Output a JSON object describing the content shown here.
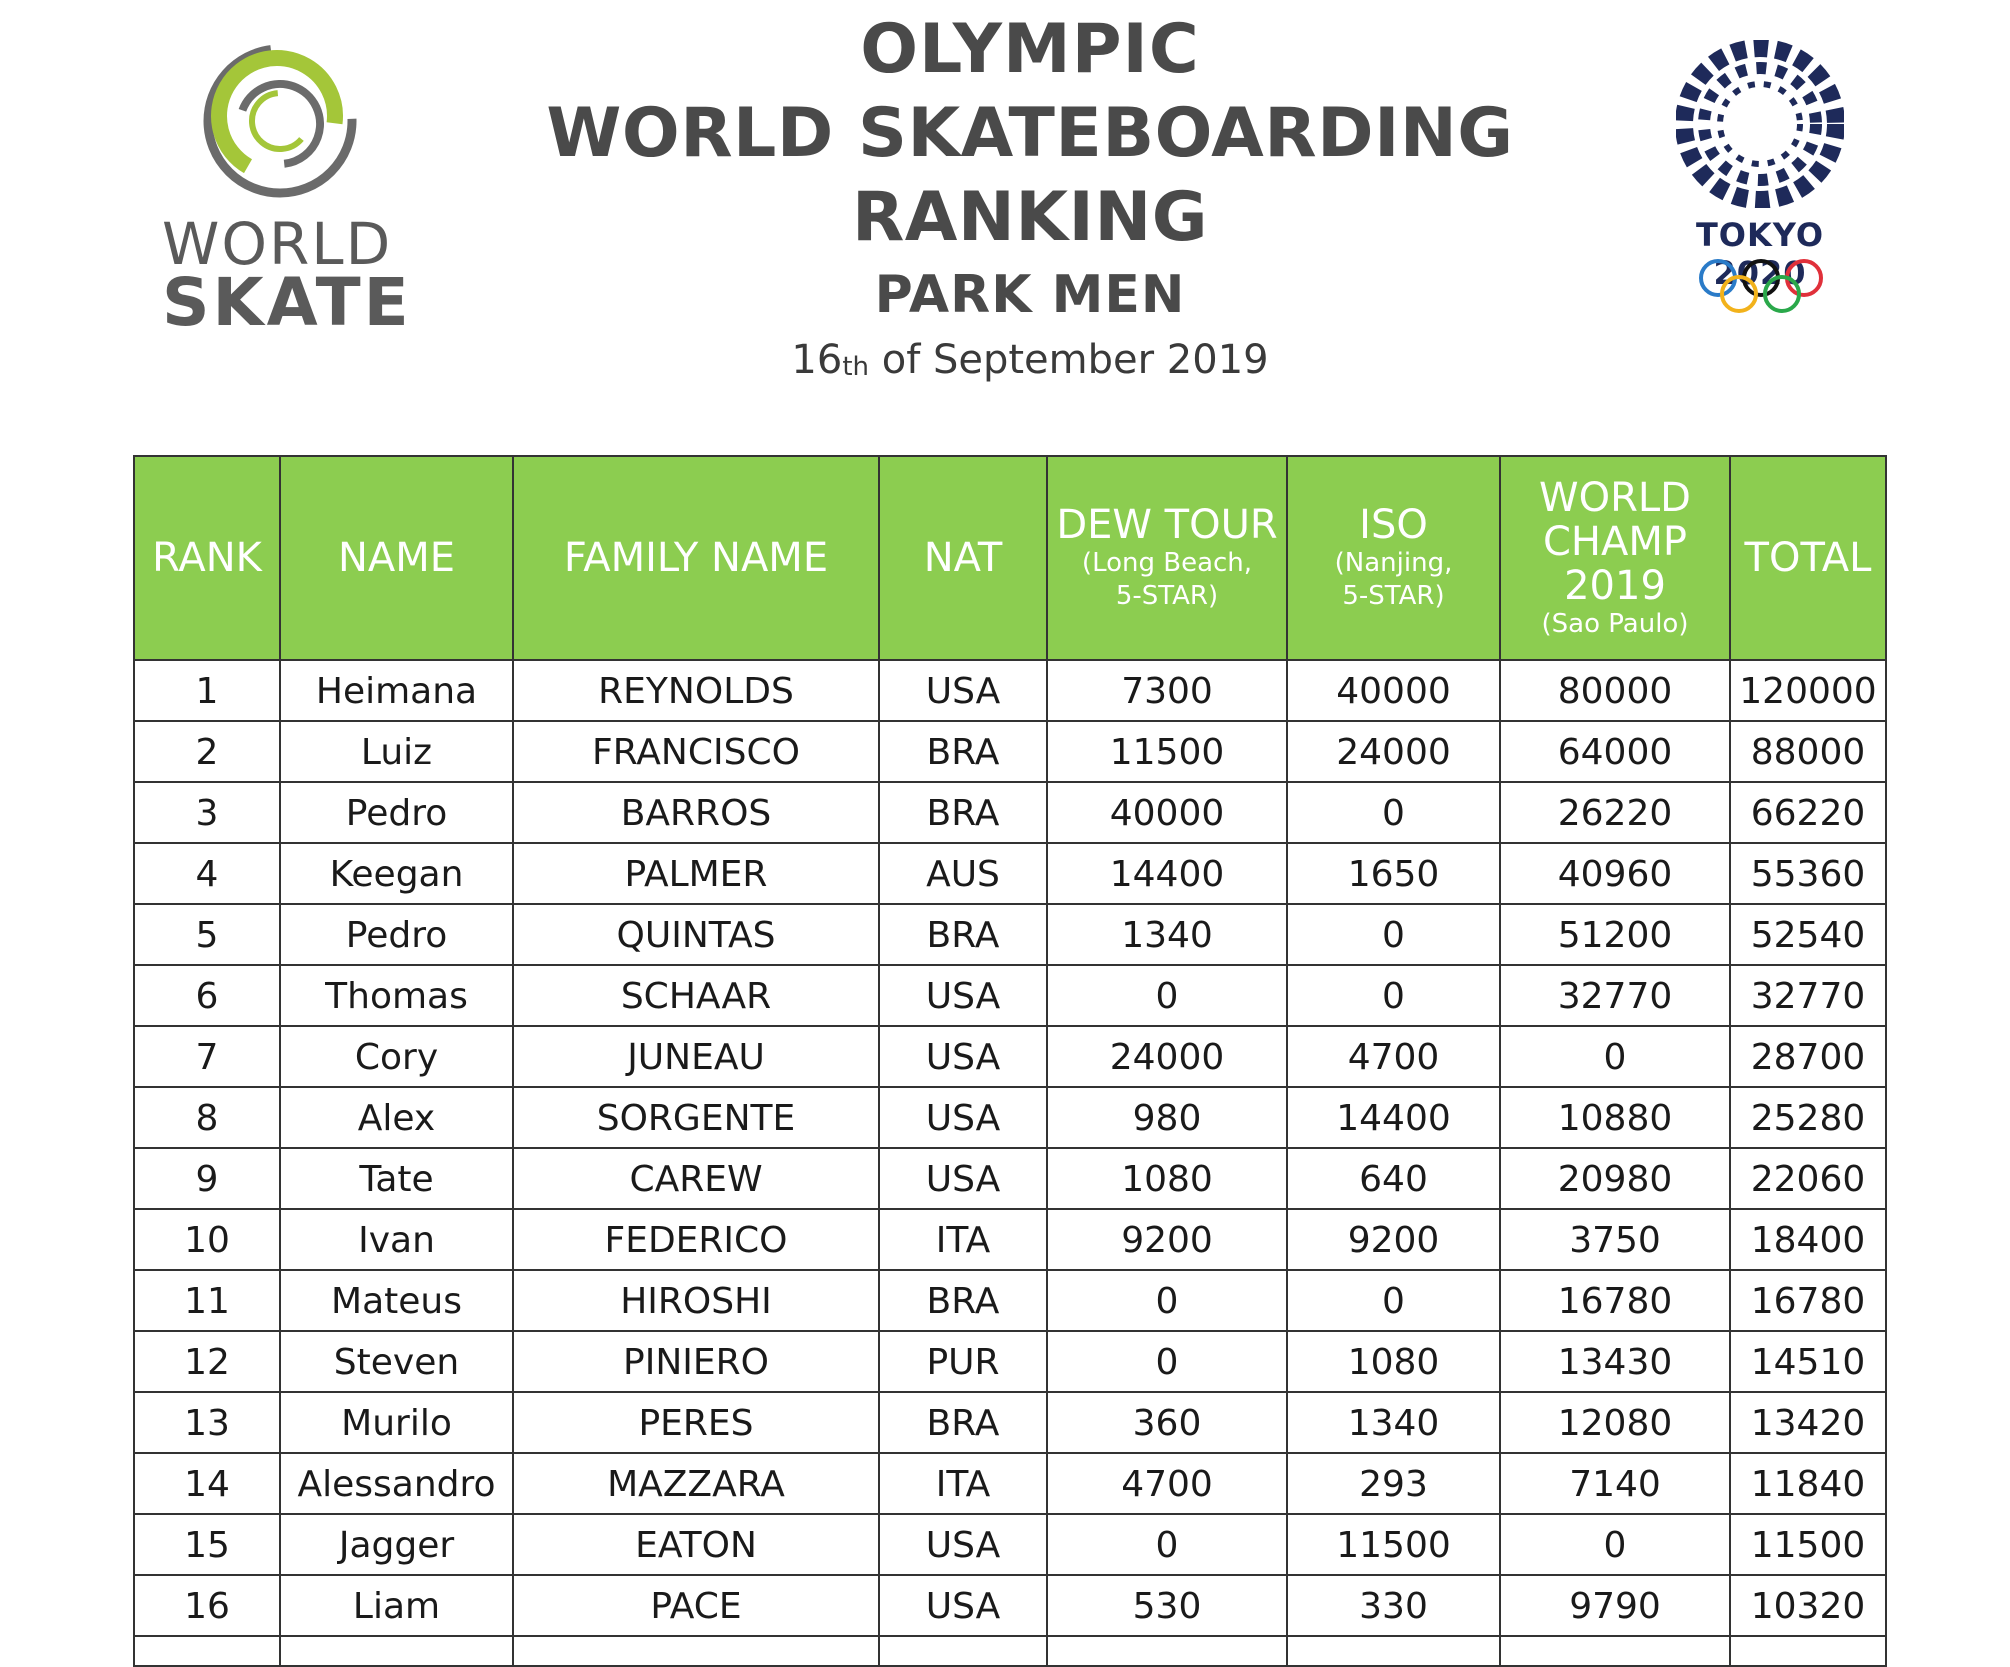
{
  "header": {
    "line1": "OLYMPIC",
    "line2": "WORLD SKATEBOARDING RANKING",
    "line3": "PARK MEN",
    "date_day": "16",
    "date_suffix": "th",
    "date_rest": " of September 2019"
  },
  "logos": {
    "world_skate_line1": "WORLD",
    "world_skate_line2": "SKATE",
    "tokyo_text": "TOKYO 2020"
  },
  "colors": {
    "header_green": "#8ccd50",
    "title_gray": "#4a4a4a",
    "tokyo_indigo": "#1e2a5a"
  },
  "table": {
    "headers": {
      "rank": "RANK",
      "name": "NAME",
      "family": "FAMILY NAME",
      "nat": "NAT",
      "dew_title": "DEW TOUR",
      "dew_sub1": "(Long Beach,",
      "dew_sub2": "5-STAR)",
      "iso_title": "ISO",
      "iso_sub1": "(Nanjing,",
      "iso_sub2": "5-STAR)",
      "wc_title1": "WORLD",
      "wc_title2": "CHAMP 2019",
      "wc_sub": "(Sao Paulo)",
      "total": "TOTAL"
    },
    "rows": [
      {
        "rank": "1",
        "name": "Heimana",
        "family": "REYNOLDS",
        "nat": "USA",
        "dew": "7300",
        "iso": "40000",
        "wc": "80000",
        "total": "120000"
      },
      {
        "rank": "2",
        "name": "Luiz",
        "family": "FRANCISCO",
        "nat": "BRA",
        "dew": "11500",
        "iso": "24000",
        "wc": "64000",
        "total": "88000"
      },
      {
        "rank": "3",
        "name": "Pedro",
        "family": "BARROS",
        "nat": "BRA",
        "dew": "40000",
        "iso": "0",
        "wc": "26220",
        "total": "66220"
      },
      {
        "rank": "4",
        "name": "Keegan",
        "family": "PALMER",
        "nat": "AUS",
        "dew": "14400",
        "iso": "1650",
        "wc": "40960",
        "total": "55360"
      },
      {
        "rank": "5",
        "name": "Pedro",
        "family": "QUINTAS",
        "nat": "BRA",
        "dew": "1340",
        "iso": "0",
        "wc": "51200",
        "total": "52540"
      },
      {
        "rank": "6",
        "name": "Thomas",
        "family": "SCHAAR",
        "nat": "USA",
        "dew": "0",
        "iso": "0",
        "wc": "32770",
        "total": "32770"
      },
      {
        "rank": "7",
        "name": "Cory",
        "family": "JUNEAU",
        "nat": "USA",
        "dew": "24000",
        "iso": "4700",
        "wc": "0",
        "total": "28700"
      },
      {
        "rank": "8",
        "name": "Alex",
        "family": "SORGENTE",
        "nat": "USA",
        "dew": "980",
        "iso": "14400",
        "wc": "10880",
        "total": "25280"
      },
      {
        "rank": "9",
        "name": "Tate",
        "family": "CAREW",
        "nat": "USA",
        "dew": "1080",
        "iso": "640",
        "wc": "20980",
        "total": "22060"
      },
      {
        "rank": "10",
        "name": "Ivan",
        "family": "FEDERICO",
        "nat": "ITA",
        "dew": "9200",
        "iso": "9200",
        "wc": "3750",
        "total": "18400"
      },
      {
        "rank": "11",
        "name": "Mateus",
        "family": "HIROSHI",
        "nat": "BRA",
        "dew": "0",
        "iso": "0",
        "wc": "16780",
        "total": "16780"
      },
      {
        "rank": "12",
        "name": "Steven",
        "family": "PINIERO",
        "nat": "PUR",
        "dew": "0",
        "iso": "1080",
        "wc": "13430",
        "total": "14510"
      },
      {
        "rank": "13",
        "name": "Murilo",
        "family": "PERES",
        "nat": "BRA",
        "dew": "360",
        "iso": "1340",
        "wc": "12080",
        "total": "13420"
      },
      {
        "rank": "14",
        "name": "Alessandro",
        "family": "MAZZARA",
        "nat": "ITA",
        "dew": "4700",
        "iso": "293",
        "wc": "7140",
        "total": "11840"
      },
      {
        "rank": "15",
        "name": "Jagger",
        "family": "EATON",
        "nat": "USA",
        "dew": "0",
        "iso": "11500",
        "wc": "0",
        "total": "11500"
      },
      {
        "rank": "16",
        "name": "Liam",
        "family": "PACE",
        "nat": "USA",
        "dew": "530",
        "iso": "330",
        "wc": "9790",
        "total": "10320"
      }
    ]
  }
}
